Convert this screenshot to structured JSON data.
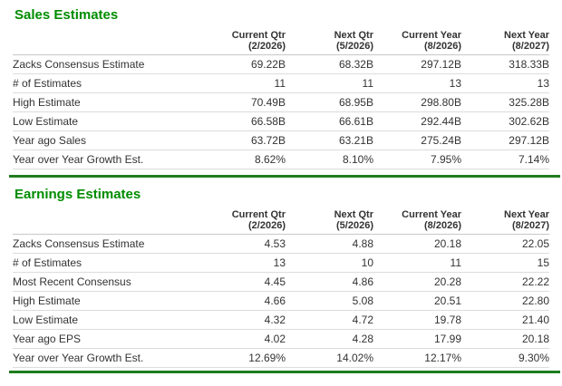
{
  "colors": {
    "heading_green": "#008c00",
    "divider_green": "#1e7d1e",
    "text": "#333333"
  },
  "sections": [
    {
      "title": "Sales Estimates",
      "columns": [
        {
          "line1": "Current Qtr",
          "line2": "(2/2026)"
        },
        {
          "line1": "Next Qtr",
          "line2": "(5/2026)"
        },
        {
          "line1": "Current Year",
          "line2": "(8/2026)"
        },
        {
          "line1": "Next Year",
          "line2": "(8/2027)"
        }
      ],
      "rows": [
        {
          "label": "Zacks Consensus Estimate",
          "values": [
            "69.22B",
            "68.32B",
            "297.12B",
            "318.33B"
          ]
        },
        {
          "label": "# of Estimates",
          "values": [
            "11",
            "11",
            "13",
            "13"
          ]
        },
        {
          "label": "High Estimate",
          "values": [
            "70.49B",
            "68.95B",
            "298.80B",
            "325.28B"
          ]
        },
        {
          "label": "Low Estimate",
          "values": [
            "66.58B",
            "66.61B",
            "292.44B",
            "302.62B"
          ]
        },
        {
          "label": "Year ago Sales",
          "values": [
            "63.72B",
            "63.21B",
            "275.24B",
            "297.12B"
          ]
        },
        {
          "label": "Year over Year Growth Est.",
          "values": [
            "8.62%",
            "8.10%",
            "7.95%",
            "7.14%"
          ]
        }
      ]
    },
    {
      "title": "Earnings Estimates",
      "columns": [
        {
          "line1": "Current Qtr",
          "line2": "(2/2026)"
        },
        {
          "line1": "Next Qtr",
          "line2": "(5/2026)"
        },
        {
          "line1": "Current Year",
          "line2": "(8/2026)"
        },
        {
          "line1": "Next Year",
          "line2": "(8/2027)"
        }
      ],
      "rows": [
        {
          "label": "Zacks Consensus Estimate",
          "values": [
            "4.53",
            "4.88",
            "20.18",
            "22.05"
          ]
        },
        {
          "label": "# of Estimates",
          "values": [
            "13",
            "10",
            "11",
            "15"
          ]
        },
        {
          "label": "Most Recent Consensus",
          "values": [
            "4.45",
            "4.86",
            "20.28",
            "22.22"
          ]
        },
        {
          "label": "High Estimate",
          "values": [
            "4.66",
            "5.08",
            "20.51",
            "22.80"
          ]
        },
        {
          "label": "Low Estimate",
          "values": [
            "4.32",
            "4.72",
            "19.78",
            "21.40"
          ]
        },
        {
          "label": "Year ago EPS",
          "values": [
            "4.02",
            "4.28",
            "17.99",
            "20.18"
          ]
        },
        {
          "label": "Year over Year Growth Est.",
          "values": [
            "12.69%",
            "14.02%",
            "12.17%",
            "9.30%"
          ]
        }
      ]
    }
  ]
}
